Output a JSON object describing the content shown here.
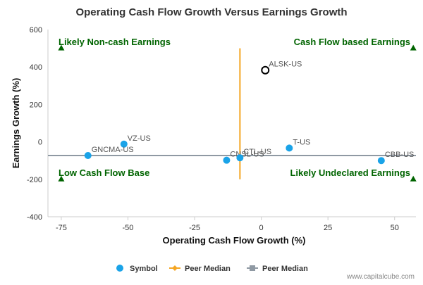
{
  "chart_data": {
    "type": "scatter",
    "title": "Operating Cash Flow Growth Versus Earnings Growth",
    "xlabel": "Operating Cash Flow Growth (%)",
    "ylabel": "Earnings Growth (%)",
    "xlim": [
      -80,
      58
    ],
    "ylim": [
      -400,
      600
    ],
    "x_ticks": [
      -75,
      -50,
      -25,
      0,
      25,
      50
    ],
    "y_ticks": [
      -400,
      -200,
      0,
      200,
      400,
      600
    ],
    "points": [
      {
        "label": "ALSK-US",
        "x": 1.5,
        "y": 383,
        "highlight": true
      },
      {
        "label": "VZ-US",
        "x": -51.5,
        "y": -12
      },
      {
        "label": "GNCMA-US",
        "x": -65,
        "y": -73
      },
      {
        "label": "CNSL-US",
        "x": -13,
        "y": -98
      },
      {
        "label": "CTL-US",
        "x": -8,
        "y": -85
      },
      {
        "label": "T-US",
        "x": 10.5,
        "y": -33
      },
      {
        "label": "CBB-US",
        "x": 45,
        "y": -100
      }
    ],
    "peer_median_x": -8,
    "peer_median_y": -73,
    "quadrant_labels": {
      "top_left": "Likely Non-cash Earnings",
      "top_right": "Cash Flow based Earnings",
      "bottom_left": "Low Cash Flow Base",
      "bottom_right": "Likely Undeclared Earnings"
    },
    "legend": [
      {
        "label": "Symbol",
        "type": "dot"
      },
      {
        "label": "Peer Median",
        "type": "vertical-line"
      },
      {
        "label": "Peer Median",
        "type": "horizontal-line"
      }
    ],
    "legend_position": "bottom-center",
    "grid": false,
    "colors": {
      "point": "#1aa3e8",
      "highlight_fill": "#ffffff",
      "highlight_stroke": "#000000",
      "vertical_median": "#f5a623",
      "horizontal_median": "#8f99a3",
      "quadrant_text": "#006400",
      "axis": "#cccccc",
      "text": "#333333"
    }
  },
  "watermark": "www.capitalcube.com"
}
